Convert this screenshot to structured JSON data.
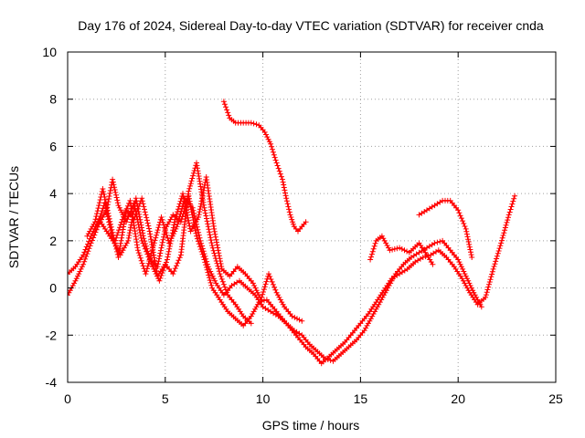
{
  "chart_data": {
    "type": "scatter",
    "title": "Day 176 of 2024, Sidereal Day-to-day VTEC variation (SDTVAR) for receiver cnda",
    "xlabel": "GPS time / hours",
    "ylabel": "SDTVAR / TECUs",
    "xlim": [
      0,
      25
    ],
    "ylim": [
      -4,
      10
    ],
    "xticks": [
      0,
      5,
      10,
      15,
      20,
      25
    ],
    "yticks": [
      -4,
      -2,
      0,
      2,
      4,
      6,
      8,
      10
    ],
    "grid": true,
    "marker": "+",
    "series": [
      {
        "name": "satellite-track-1",
        "color": "#ff0000",
        "x": [
          0.0,
          0.4,
          0.8,
          1.2,
          1.6,
          2.0,
          2.3,
          2.6,
          3.0,
          3.4,
          3.8,
          4.2,
          4.6,
          5.0,
          5.4,
          5.8,
          6.2,
          6.6,
          7.0,
          7.4,
          7.8,
          8.2,
          8.6,
          9.0,
          9.4,
          9.8,
          10.2,
          10.6,
          11.0,
          11.4,
          11.8,
          12.2,
          12.6,
          13.0,
          13.4,
          13.8,
          14.2,
          14.6,
          15.0,
          15.4,
          15.8,
          16.2,
          16.6,
          17.0,
          17.4,
          17.8,
          18.2,
          18.6,
          19.0,
          19.4,
          19.8,
          20.2,
          20.6,
          21.0,
          21.4,
          21.8,
          22.2,
          22.6,
          22.9
        ],
        "y": [
          -0.3,
          0.3,
          1.0,
          1.9,
          2.7,
          3.3,
          4.6,
          3.5,
          2.8,
          3.6,
          2.0,
          1.2,
          0.9,
          2.5,
          3.1,
          2.8,
          3.9,
          2.2,
          1.2,
          0.0,
          -0.5,
          -1.0,
          -1.3,
          -1.6,
          -1.2,
          -0.6,
          -0.5,
          -0.9,
          -1.3,
          -1.7,
          -2.1,
          -2.5,
          -2.8,
          -3.2,
          -2.9,
          -2.6,
          -2.3,
          -1.9,
          -1.5,
          -1.1,
          -0.6,
          -0.1,
          0.4,
          0.6,
          0.8,
          1.1,
          1.3,
          1.4,
          1.6,
          1.3,
          0.9,
          0.4,
          -0.2,
          -0.7,
          -0.4,
          0.8,
          1.9,
          3.1,
          3.9
        ]
      },
      {
        "name": "satellite-track-2",
        "color": "#ff0000",
        "x": [
          0.0,
          0.4,
          0.8,
          1.2,
          1.6,
          2.0,
          2.4,
          2.8,
          3.2,
          3.6,
          4.0,
          4.4,
          4.8,
          5.2,
          5.6,
          6.0,
          6.4,
          6.8,
          7.2,
          7.6,
          8.0,
          8.4,
          8.8,
          9.2,
          9.6,
          10.0,
          10.4,
          10.8,
          11.2,
          11.6,
          12.0,
          12.4,
          12.8,
          13.2,
          13.6,
          14.0,
          14.4,
          14.8,
          15.2,
          15.6,
          16.0,
          16.4,
          16.8,
          17.2,
          17.6,
          18.0,
          18.4,
          18.8,
          19.2,
          19.6,
          20.0,
          20.4,
          20.8,
          21.2
        ],
        "y": [
          0.6,
          0.9,
          1.4,
          2.2,
          2.9,
          2.4,
          1.9,
          2.9,
          3.7,
          1.6,
          0.6,
          1.8,
          3.0,
          1.9,
          2.6,
          3.8,
          3.4,
          2.0,
          0.9,
          0.2,
          -0.3,
          0.1,
          0.3,
          0.0,
          -0.3,
          -0.8,
          -1.0,
          -1.2,
          -1.5,
          -1.8,
          -2.0,
          -2.4,
          -2.7,
          -3.0,
          -3.1,
          -2.8,
          -2.5,
          -2.2,
          -1.8,
          -1.2,
          -0.6,
          0.0,
          0.6,
          1.0,
          1.3,
          1.5,
          1.7,
          1.9,
          2.0,
          1.6,
          1.2,
          0.5,
          -0.2,
          -0.8
        ]
      },
      {
        "name": "satellite-track-3",
        "color": "#ff0000",
        "x": [
          1.0,
          1.4,
          1.8,
          2.2,
          2.6,
          3.0,
          3.4,
          3.8,
          4.2,
          4.6,
          5.0,
          5.4,
          5.8,
          6.2,
          6.6,
          7.0,
          7.4,
          7.8,
          8.2,
          8.6,
          9.0,
          9.4
        ],
        "y": [
          2.2,
          2.8,
          4.2,
          2.7,
          1.3,
          3.3,
          2.9,
          3.8,
          2.4,
          0.5,
          1.0,
          0.6,
          1.4,
          4.1,
          5.3,
          3.4,
          1.8,
          0.6,
          -0.3,
          -0.7,
          -1.2,
          -1.5
        ]
      },
      {
        "name": "satellite-track-4",
        "color": "#ff0000",
        "x": [
          1.5,
          1.9,
          2.3,
          2.7,
          3.1,
          3.5,
          3.9,
          4.3,
          4.7,
          5.1,
          5.5,
          5.9,
          6.3,
          6.7,
          7.1,
          7.5,
          7.9,
          8.3,
          8.7,
          9.1,
          9.5,
          9.9,
          10.3,
          10.7,
          11.1,
          11.5,
          12.0
        ],
        "y": [
          2.6,
          3.6,
          2.1,
          1.4,
          2.0,
          3.8,
          2.1,
          1.0,
          0.3,
          1.2,
          2.9,
          4.0,
          2.4,
          3.0,
          4.7,
          2.5,
          0.8,
          0.5,
          0.9,
          0.6,
          0.2,
          -0.5,
          0.6,
          -0.2,
          -0.8,
          -1.2,
          -1.4
        ]
      },
      {
        "name": "satellite-track-5",
        "color": "#ff0000",
        "x": [
          8.0,
          8.3,
          8.6,
          9.0,
          9.4,
          9.8,
          10.1,
          10.4,
          10.7,
          11.0,
          11.2,
          11.4,
          11.6,
          11.8,
          12.0,
          12.2
        ],
        "y": [
          7.9,
          7.2,
          7.0,
          7.0,
          7.0,
          6.9,
          6.6,
          6.1,
          5.3,
          4.6,
          3.8,
          3.1,
          2.6,
          2.4,
          2.6,
          2.8
        ]
      },
      {
        "name": "satellite-track-6",
        "color": "#ff0000",
        "x": [
          15.5,
          15.8,
          16.1,
          16.5,
          17.0,
          17.5,
          18.0,
          18.4,
          18.7
        ],
        "y": [
          1.2,
          2.0,
          2.2,
          1.6,
          1.7,
          1.5,
          1.9,
          1.4,
          1.0
        ]
      },
      {
        "name": "satellite-track-7",
        "color": "#ff0000",
        "x": [
          18.0,
          18.4,
          18.8,
          19.2,
          19.6,
          20.0,
          20.4,
          20.7
        ],
        "y": [
          3.1,
          3.3,
          3.5,
          3.7,
          3.7,
          3.3,
          2.5,
          1.3
        ]
      }
    ]
  }
}
